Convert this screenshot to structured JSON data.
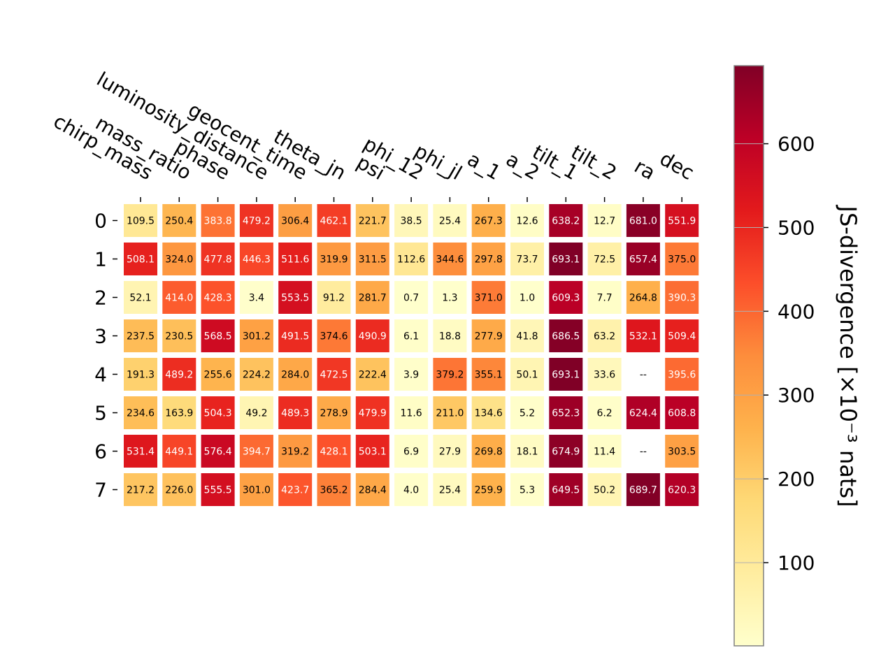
{
  "chart_data": {
    "type": "heatmap",
    "columns": [
      "chirp_mass",
      "mass_ratio",
      "phase",
      "luminosity_distance",
      "geocent_time",
      "theta_jn",
      "psi",
      "phi_12",
      "phi_jl",
      "a_1",
      "a_2",
      "tilt_1",
      "tilt_2",
      "ra",
      "dec"
    ],
    "rows": [
      "0",
      "1",
      "2",
      "3",
      "4",
      "5",
      "6",
      "7"
    ],
    "values": [
      [
        109.5,
        250.4,
        383.8,
        479.2,
        306.4,
        462.1,
        221.7,
        38.5,
        25.4,
        267.3,
        12.6,
        638.2,
        12.7,
        681.0,
        551.9
      ],
      [
        508.1,
        324.0,
        477.8,
        446.3,
        511.6,
        319.9,
        311.5,
        112.6,
        344.6,
        297.8,
        73.7,
        693.1,
        72.5,
        657.4,
        375.0
      ],
      [
        52.1,
        414.0,
        428.3,
        3.4,
        553.5,
        91.2,
        281.7,
        0.7,
        1.3,
        371.0,
        1.0,
        609.3,
        7.7,
        264.8,
        390.3
      ],
      [
        237.5,
        230.5,
        568.5,
        301.2,
        491.5,
        374.6,
        490.9,
        6.1,
        18.8,
        277.9,
        41.8,
        686.5,
        63.2,
        532.1,
        509.4
      ],
      [
        191.3,
        489.2,
        255.6,
        224.2,
        284.0,
        472.5,
        222.4,
        3.9,
        379.2,
        355.1,
        50.1,
        693.1,
        33.6,
        null,
        395.6
      ],
      [
        234.6,
        163.9,
        504.3,
        49.2,
        489.3,
        278.9,
        479.9,
        11.6,
        211.0,
        134.6,
        5.2,
        652.3,
        6.2,
        624.4,
        608.8
      ],
      [
        531.4,
        449.1,
        576.4,
        394.7,
        319.2,
        428.1,
        503.1,
        6.9,
        27.9,
        269.8,
        18.1,
        674.9,
        11.4,
        null,
        303.5
      ],
      [
        217.2,
        226.0,
        555.5,
        301.0,
        423.7,
        365.2,
        284.4,
        4.0,
        25.4,
        259.9,
        5.3,
        649.5,
        50.2,
        689.7,
        620.3
      ]
    ],
    "missing_label": "--",
    "colormap": "YlOrRd",
    "vmin": 0.7,
    "vmax": 693.1,
    "colorbar": {
      "label": "JS-divergence [×10⁻³ nats]",
      "ticks": [
        100,
        200,
        300,
        400,
        500,
        600
      ],
      "tick_labels": [
        "100",
        "200",
        "300",
        "400",
        "500",
        "600"
      ]
    }
  }
}
